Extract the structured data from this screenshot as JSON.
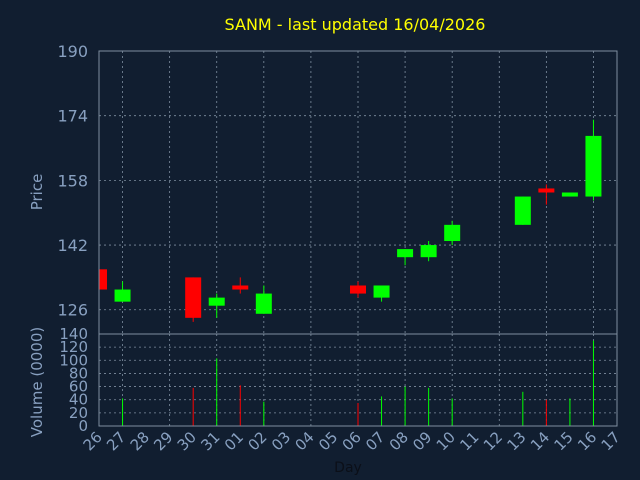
{
  "chart_data": [
    {
      "type": "candlestick",
      "title": "SANM - last updated 16/04/2026",
      "ylabel": "Price",
      "xlabel": "Day",
      "ylim": [
        120,
        190
      ],
      "yticks": [
        126,
        142,
        158,
        174,
        190
      ],
      "grid": true,
      "colors": {
        "up": "#00ff00",
        "down": "#ff0000",
        "title": "#ffff00",
        "labels": "#88a0c0",
        "background": "#111e30"
      },
      "x_tick_labels": [
        "26",
        "27",
        "28",
        "29",
        "30",
        "31",
        "01",
        "02",
        "03",
        "04",
        "05",
        "06",
        "07",
        "08",
        "09",
        "10",
        "11",
        "12",
        "13",
        "14",
        "15",
        "16",
        "17"
      ],
      "candles": [
        {
          "day": "26",
          "open": 136,
          "high": 136,
          "low": 131,
          "close": 131
        },
        {
          "day": "27",
          "open": 128,
          "high": 133,
          "low": 128,
          "close": 131
        },
        {
          "day": "30",
          "open": 134,
          "high": 134,
          "low": 123,
          "close": 124
        },
        {
          "day": "31",
          "open": 127,
          "high": 130,
          "low": 124,
          "close": 129
        },
        {
          "day": "01",
          "open": 132,
          "high": 134,
          "low": 130,
          "close": 131
        },
        {
          "day": "02",
          "open": 125,
          "high": 132,
          "low": 125,
          "close": 130
        },
        {
          "day": "06",
          "open": 132,
          "high": 133,
          "low": 129,
          "close": 130
        },
        {
          "day": "07",
          "open": 129,
          "high": 132,
          "low": 128,
          "close": 132
        },
        {
          "day": "08",
          "open": 139,
          "high": 141,
          "low": 137,
          "close": 141
        },
        {
          "day": "09",
          "open": 139,
          "high": 143,
          "low": 138,
          "close": 142
        },
        {
          "day": "10",
          "open": 143,
          "high": 148,
          "low": 142,
          "close": 147
        },
        {
          "day": "13",
          "open": 147,
          "high": 154,
          "low": 147,
          "close": 154
        },
        {
          "day": "14",
          "open": 156,
          "high": 157,
          "low": 152,
          "close": 155
        },
        {
          "day": "15",
          "open": 154,
          "high": 155,
          "low": 154,
          "close": 155
        },
        {
          "day": "16",
          "open": 154,
          "high": 173,
          "low": 153,
          "close": 169
        }
      ]
    },
    {
      "type": "bar",
      "ylabel": "Volume (0000)",
      "xlabel": "Day",
      "ylim": [
        0,
        140
      ],
      "yticks": [
        0,
        20,
        40,
        60,
        80,
        100,
        120,
        140
      ],
      "grid": true,
      "volumes": [
        {
          "day": "26",
          "value": 0,
          "direction": "down"
        },
        {
          "day": "27",
          "value": 42,
          "direction": "up"
        },
        {
          "day": "30",
          "value": 58,
          "direction": "down"
        },
        {
          "day": "31",
          "value": 103,
          "direction": "up"
        },
        {
          "day": "01",
          "value": 62,
          "direction": "down"
        },
        {
          "day": "02",
          "value": 37,
          "direction": "up"
        },
        {
          "day": "06",
          "value": 35,
          "direction": "down"
        },
        {
          "day": "07",
          "value": 45,
          "direction": "up"
        },
        {
          "day": "08",
          "value": 60,
          "direction": "up"
        },
        {
          "day": "09",
          "value": 58,
          "direction": "up"
        },
        {
          "day": "10",
          "value": 42,
          "direction": "up"
        },
        {
          "day": "13",
          "value": 52,
          "direction": "up"
        },
        {
          "day": "14",
          "value": 40,
          "direction": "down"
        },
        {
          "day": "15",
          "value": 42,
          "direction": "up"
        },
        {
          "day": "16",
          "value": 130,
          "direction": "up"
        }
      ]
    }
  ]
}
